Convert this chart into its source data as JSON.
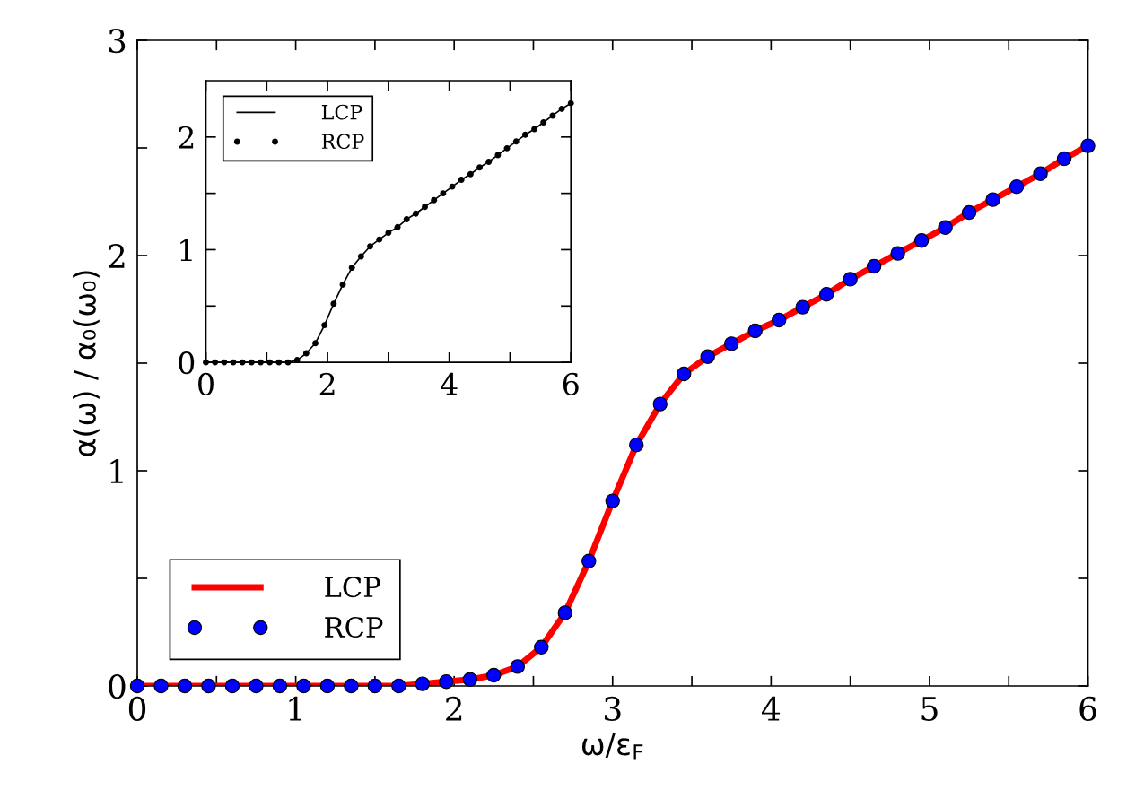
{
  "chart_data": [
    {
      "type": "line",
      "xlabel": "ω/ε$_{F}$",
      "ylabel": "α(ω) / α₀(ω₀)",
      "xlim": [
        0,
        6
      ],
      "ylim": [
        0,
        3
      ],
      "xticks": [
        0,
        {
          "value": 0.5,
          "label": null
        },
        1,
        {
          "value": 1.5,
          "label": null
        },
        2,
        {
          "value": 2.5,
          "label": null
        },
        3,
        {
          "value": 3.5,
          "label": null
        },
        4,
        {
          "value": 4.5,
          "label": null
        },
        5,
        {
          "value": 5.5,
          "label": null
        },
        6
      ],
      "yticks": [
        0,
        {
          "value": 0.5,
          "label": null
        },
        1,
        {
          "value": 1.5,
          "label": null
        },
        2,
        {
          "value": 2.5,
          "label": null
        },
        3
      ],
      "grid": false,
      "legend": "bottom left",
      "x": [
        0,
        0.15,
        0.3,
        0.45,
        0.6,
        0.75,
        0.9,
        1.05,
        1.2,
        1.35,
        1.5,
        1.65,
        1.8,
        1.95,
        2.1,
        2.25,
        2.4,
        2.55,
        2.7,
        2.85,
        3.0,
        3.15,
        3.3,
        3.45,
        3.6,
        3.75,
        3.9,
        4.05,
        4.2,
        4.35,
        4.5,
        4.65,
        4.8,
        4.95,
        5.1,
        5.25,
        5.4,
        5.55,
        5.7,
        5.85,
        6.0
      ],
      "series": [
        {
          "name": "LCP",
          "type": "line",
          "color": "#ff0000",
          "marker": "none",
          "line_style": "solid",
          "values": [
            0,
            0,
            0,
            0,
            0,
            0,
            0,
            0,
            0,
            0,
            0,
            0,
            0.01,
            0.02,
            0.03,
            0.05,
            0.09,
            0.18,
            0.34,
            0.58,
            0.86,
            1.12,
            1.31,
            1.45,
            1.53,
            1.59,
            1.65,
            1.7,
            1.76,
            1.82,
            1.89,
            1.95,
            2.01,
            2.07,
            2.13,
            2.2,
            2.26,
            2.32,
            2.38,
            2.45,
            2.51
          ]
        },
        {
          "name": "RCP",
          "type": "scatter",
          "color": "#0000ff",
          "marker": "circle",
          "values": [
            0,
            0,
            0,
            0,
            0,
            0,
            0,
            0,
            0,
            0,
            0,
            0,
            0.01,
            0.02,
            0.03,
            0.05,
            0.09,
            0.18,
            0.34,
            0.58,
            0.86,
            1.12,
            1.31,
            1.45,
            1.53,
            1.59,
            1.65,
            1.7,
            1.76,
            1.82,
            1.89,
            1.95,
            2.01,
            2.07,
            2.13,
            2.2,
            2.26,
            2.32,
            2.38,
            2.45,
            2.51
          ]
        }
      ]
    },
    {
      "type": "line",
      "xlim": [
        0,
        6
      ],
      "ylim": [
        0,
        2.5
      ],
      "xticks": [
        0,
        {
          "value": 1,
          "label": null
        },
        2,
        {
          "value": 3,
          "label": null
        },
        4,
        {
          "value": 5,
          "label": null
        },
        6
      ],
      "yticks": [
        0,
        {
          "value": 0.5,
          "label": null
        },
        1,
        {
          "value": 1.5,
          "label": null
        },
        2
      ],
      "grid": false,
      "legend": "top left",
      "x": [
        0,
        0.15,
        0.3,
        0.45,
        0.6,
        0.75,
        0.9,
        1.05,
        1.2,
        1.35,
        1.5,
        1.65,
        1.8,
        1.95,
        2.1,
        2.25,
        2.4,
        2.55,
        2.7,
        2.85,
        3.0,
        3.15,
        3.3,
        3.45,
        3.6,
        3.75,
        3.9,
        4.05,
        4.2,
        4.35,
        4.5,
        4.65,
        4.8,
        4.95,
        5.1,
        5.25,
        5.4,
        5.55,
        5.7,
        5.85,
        6.0
      ],
      "series": [
        {
          "name": "LCP",
          "type": "line",
          "color": "#000000",
          "marker": "none",
          "line_style": "solid",
          "values": [
            0,
            0,
            0,
            0,
            0,
            0,
            0,
            0,
            0,
            0,
            0.02,
            0.08,
            0.17,
            0.33,
            0.52,
            0.69,
            0.84,
            0.94,
            1.03,
            1.09,
            1.15,
            1.2,
            1.27,
            1.32,
            1.38,
            1.44,
            1.5,
            1.56,
            1.62,
            1.67,
            1.73,
            1.78,
            1.84,
            1.9,
            1.96,
            2.02,
            2.07,
            2.13,
            2.19,
            2.25,
            2.3
          ]
        },
        {
          "name": "RCP",
          "type": "scatter",
          "color": "#000000",
          "marker": "circle",
          "values": [
            0,
            0,
            0,
            0,
            0,
            0,
            0,
            0,
            0,
            0,
            0.02,
            0.08,
            0.17,
            0.33,
            0.52,
            0.69,
            0.84,
            0.94,
            1.03,
            1.09,
            1.15,
            1.2,
            1.27,
            1.32,
            1.38,
            1.44,
            1.5,
            1.56,
            1.62,
            1.67,
            1.73,
            1.78,
            1.84,
            1.9,
            1.96,
            2.02,
            2.07,
            2.13,
            2.19,
            2.25,
            2.3
          ]
        }
      ]
    }
  ]
}
